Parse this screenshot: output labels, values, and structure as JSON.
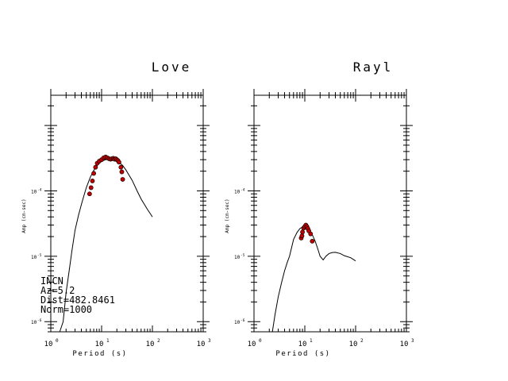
{
  "chart_data": [
    {
      "type": "line",
      "title": "Love",
      "xlabel": "Period (s)",
      "ylabel": "Amp (cm-sec)",
      "xscale": "log",
      "yscale": "log",
      "xlim": [
        1,
        1000
      ],
      "ylim": [
        7e-07,
        0.0029
      ],
      "x_ticks": [
        {
          "value": 1,
          "label": "10^0"
        },
        {
          "value": 10,
          "label": "10^1"
        },
        {
          "value": 100,
          "label": "10^2"
        },
        {
          "value": 1000,
          "label": "10^3"
        }
      ],
      "y_ticks": [
        {
          "value": 1e-06,
          "label": "10^-6"
        },
        {
          "value": 1e-05,
          "label": "10^-5"
        },
        {
          "value": 0.0001,
          "label": "10^-4"
        }
      ],
      "grid": false,
      "annotation": [
        "INCN",
        "Az=5.2",
        "Dist=482.8461",
        "Norm=1000"
      ],
      "series": [
        {
          "kind": "line",
          "color": "#000000",
          "x": [
            1.5,
            1.75,
            2.0,
            2.3,
            2.6,
            3.0,
            3.5,
            4.0,
            4.5,
            5.0,
            6.0,
            7.0,
            8.0,
            10.0,
            12.0,
            14.0,
            16.0,
            18.0,
            20.0,
            23.0,
            26.0,
            30.0,
            40.0,
            50.0,
            60.0,
            80.0,
            100.0
          ],
          "y": [
            7e-07,
            1e-06,
            2.8e-06,
            6e-06,
            1.2e-05,
            2.5e-05,
            4.2e-05,
            6.2e-05,
            8.5e-05,
            0.000112,
            0.000162,
            0.000205,
            0.00024,
            0.000285,
            0.0003,
            0.0003,
            0.000295,
            0.00029,
            0.000282,
            0.000265,
            0.000245,
            0.00021,
            0.000145,
            0.0001,
            7.5e-05,
            5.2e-05,
            4e-05
          ]
        },
        {
          "kind": "scatter",
          "color": "#c00000",
          "x": [
            5.8,
            6.2,
            6.6,
            7.0,
            7.6,
            8.2,
            9.0,
            10.0,
            11.0,
            12.0,
            13.0,
            14.0,
            15.0,
            16.0,
            17.0,
            18.0,
            19.0,
            20.0,
            21.0,
            22.0,
            24.0,
            25.0,
            26.0
          ],
          "y": [
            9e-05,
            0.000112,
            0.000142,
            0.000185,
            0.00023,
            0.000265,
            0.000285,
            0.0003,
            0.00032,
            0.00033,
            0.00032,
            0.00031,
            0.000305,
            0.00031,
            0.000315,
            0.000305,
            0.00031,
            0.0003,
            0.00029,
            0.000275,
            0.00023,
            0.000195,
            0.00015
          ]
        }
      ]
    },
    {
      "type": "line",
      "title": "Rayl",
      "xlabel": "Period (s)",
      "ylabel": "Amp (cm-sec)",
      "xscale": "log",
      "yscale": "log",
      "xlim": [
        1,
        1000
      ],
      "ylim": [
        7e-07,
        0.0029
      ],
      "x_ticks": [
        {
          "value": 1,
          "label": "10^0"
        },
        {
          "value": 10,
          "label": "10^1"
        },
        {
          "value": 100,
          "label": "10^2"
        },
        {
          "value": 1000,
          "label": "10^3"
        }
      ],
      "y_ticks": [
        {
          "value": 1e-06,
          "label": "10^-6"
        },
        {
          "value": 1e-05,
          "label": "10^-5"
        },
        {
          "value": 0.0001,
          "label": "10^-4"
        }
      ],
      "grid": false,
      "series": [
        {
          "kind": "line",
          "color": "#000000",
          "x": [
            2.3,
            2.6,
            3.0,
            3.5,
            4.0,
            4.5,
            5.0,
            6.0,
            7.0,
            8.0,
            9.0,
            10.0,
            11.0,
            12.0,
            14.0,
            16.0,
            18.0,
            20.0,
            23.0,
            26.0,
            30.0,
            35.0,
            40.0,
            50.0,
            60.0,
            80.0,
            100.0
          ],
          "y": [
            7e-07,
            1.3e-06,
            2.4e-06,
            4e-06,
            6e-06,
            8e-06,
            1e-05,
            1.8e-05,
            2.3e-05,
            2.65e-05,
            2.8e-05,
            2.8e-05,
            2.7e-05,
            2.5e-05,
            2.15e-05,
            1.7e-05,
            1.3e-05,
            1e-05,
            8.8e-06,
            1e-05,
            1.1e-05,
            1.14e-05,
            1.15e-05,
            1.1e-05,
            1.02e-05,
            9.5e-06,
            8.5e-06
          ]
        },
        {
          "kind": "scatter",
          "color": "#c00000",
          "x": [
            8.5,
            8.8,
            9.0,
            9.5,
            10.0,
            10.5,
            11.0,
            11.5,
            12.0,
            13.0,
            14.0
          ],
          "y": [
            1.9e-05,
            2.05e-05,
            2.35e-05,
            2.7e-05,
            2.85e-05,
            3e-05,
            2.85e-05,
            2.65e-05,
            2.45e-05,
            2.2e-05,
            1.7e-05
          ]
        }
      ]
    }
  ]
}
